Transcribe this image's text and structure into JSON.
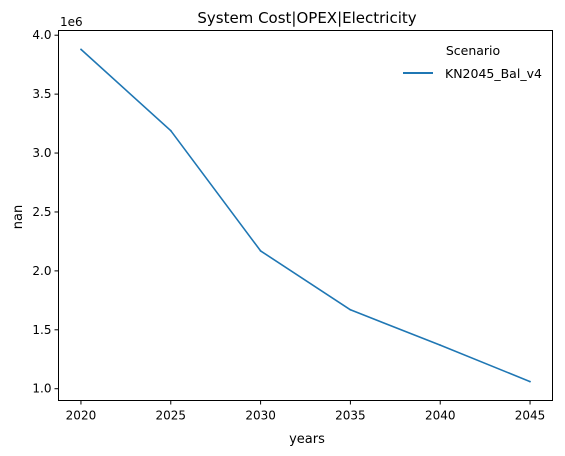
{
  "chart_data": {
    "type": "line",
    "title": "System Cost|OPEX|Electricity",
    "xlabel": "years",
    "ylabel": "nan",
    "y_offset_label": "1e6",
    "x": [
      2020,
      2025,
      2030,
      2035,
      2040,
      2045
    ],
    "xticks": [
      "2020",
      "2025",
      "2030",
      "2035",
      "2040",
      "2045"
    ],
    "yticks": [
      "1.0",
      "1.5",
      "2.0",
      "2.5",
      "3.0",
      "3.5",
      "4.0"
    ],
    "ytick_values": [
      1.0,
      1.5,
      2.0,
      2.5,
      3.0,
      3.5,
      4.0
    ],
    "xlim": [
      2018.75,
      2046.25
    ],
    "ylim": [
      0.9,
      4.04
    ],
    "grid": false,
    "legend": {
      "title": "Scenario",
      "placement": "top-right"
    },
    "series": [
      {
        "name": "KN2045_Bal_v4",
        "color": "#1f77b4",
        "values": [
          3.88,
          3.19,
          2.17,
          1.67,
          1.37,
          1.06
        ]
      }
    ]
  }
}
